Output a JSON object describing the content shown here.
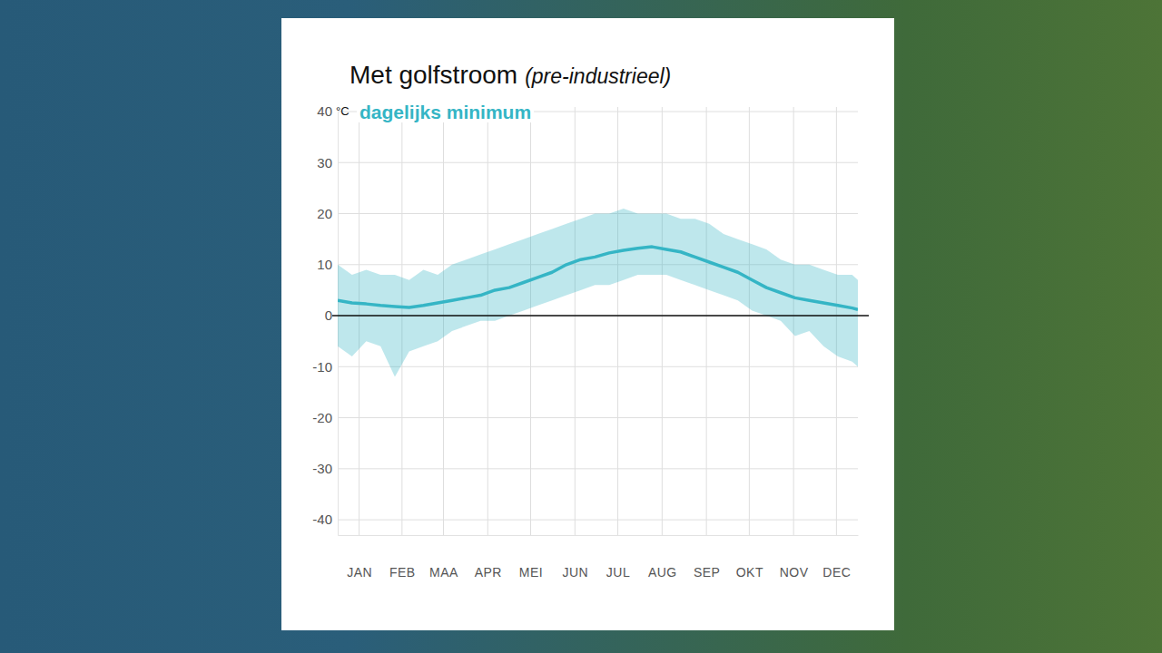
{
  "chart_data": {
    "type": "line",
    "title": "Met golfstroom",
    "subtitle": "(pre-industrieel)",
    "y_label": "°C",
    "x": [
      1,
      11,
      21,
      31,
      41,
      51,
      61,
      71,
      81,
      91,
      101,
      111,
      121,
      131,
      141,
      151,
      161,
      171,
      181,
      191,
      201,
      211,
      221,
      231,
      241,
      251,
      261,
      271,
      281,
      291,
      301,
      311,
      321,
      331,
      341,
      351,
      361,
      365
    ],
    "series": [
      {
        "name": "dagelijks minimum",
        "color": "#35b5c5",
        "values": [
          3.0,
          2.5,
          2.3,
          2.0,
          1.8,
          1.6,
          2.0,
          2.5,
          3.0,
          3.5,
          4.0,
          5.0,
          5.5,
          6.5,
          7.5,
          8.5,
          10.0,
          11.0,
          11.5,
          12.3,
          12.8,
          13.2,
          13.5,
          13.0,
          12.5,
          11.5,
          10.5,
          9.5,
          8.5,
          7.0,
          5.5,
          4.5,
          3.5,
          3.0,
          2.5,
          2.0,
          1.5,
          1.2
        ],
        "lower": [
          -6,
          -8,
          -5,
          -6,
          -12,
          -7,
          -6,
          -5,
          -3,
          -2,
          -1,
          -1,
          0,
          1,
          2,
          3,
          4,
          5,
          6,
          6,
          7,
          8,
          8,
          8,
          7,
          6,
          5,
          4,
          3,
          1,
          0,
          -1,
          -4,
          -3,
          -6,
          -8,
          -9,
          -10
        ],
        "upper": [
          10,
          8,
          9,
          8,
          8,
          7,
          9,
          8,
          10,
          11,
          12,
          13,
          14,
          15,
          16,
          17,
          18,
          19,
          20,
          20,
          21,
          20,
          20,
          20,
          19,
          19,
          18,
          16,
          15,
          14,
          13,
          11,
          10,
          10,
          9,
          8,
          8,
          7
        ]
      }
    ],
    "xlim": [
      1,
      365
    ],
    "xticks": [
      {
        "value": 16,
        "label": "JAN"
      },
      {
        "value": 46,
        "label": "FEB"
      },
      {
        "value": 75,
        "label": "MAA"
      },
      {
        "value": 106,
        "label": "APR"
      },
      {
        "value": 136,
        "label": "MEI"
      },
      {
        "value": 167,
        "label": "JUN"
      },
      {
        "value": 197,
        "label": "JUL"
      },
      {
        "value": 228,
        "label": "AUG"
      },
      {
        "value": 259,
        "label": "SEP"
      },
      {
        "value": 289,
        "label": "OKT"
      },
      {
        "value": 320,
        "label": "NOV"
      },
      {
        "value": 350,
        "label": "DEC"
      }
    ],
    "ylim": [
      -43,
      40
    ],
    "yticks": [
      -40,
      -30,
      -20,
      -10,
      0,
      10,
      20,
      30,
      40
    ],
    "grid": true,
    "legend": "top left"
  }
}
